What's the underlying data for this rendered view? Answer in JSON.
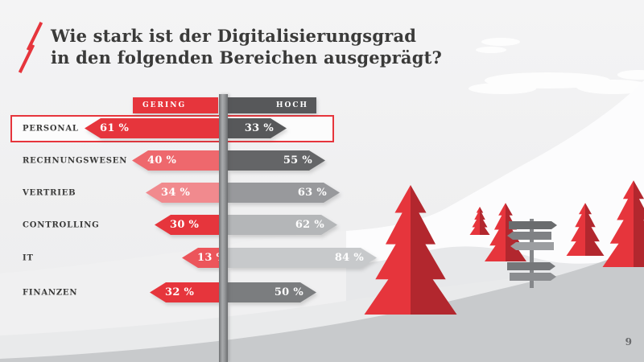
{
  "title": {
    "line1": "Wie stark ist der Digitalisierungsgrad",
    "line2": "in den folgenden Bereichen ausgeprägt?"
  },
  "legend": {
    "left": {
      "label": "GERING",
      "color": "#e6353c"
    },
    "right": {
      "label": "HOCH",
      "color": "#57585a"
    }
  },
  "rows": [
    {
      "label": "PERSONAL",
      "left_label": "61 %",
      "left_value": 61,
      "left_color": "#e6353c",
      "right_label": "33 %",
      "right_value": 33,
      "right_color": "#57585a",
      "highlighted": true
    },
    {
      "label": "RECHNUNGSWESEN",
      "left_label": "40 %",
      "left_value": 40,
      "left_color": "#ee686d",
      "right_label": "55 %",
      "right_value": 55,
      "right_color": "#646567",
      "highlighted": false
    },
    {
      "label": "VERTRIEB",
      "left_label": "34 %",
      "left_value": 34,
      "left_color": "#f18a8e",
      "right_label": "63 %",
      "right_value": 63,
      "right_color": "#98999c",
      "highlighted": false
    },
    {
      "label": "CONTROLLING",
      "left_label": "30 %",
      "left_value": 30,
      "left_color": "#e6353c",
      "right_label": "62 %",
      "right_value": 62,
      "right_color": "#b4b6b8",
      "highlighted": false
    },
    {
      "label": "IT",
      "left_label": "13 %",
      "left_value": 13,
      "left_color": "#ec555b",
      "right_label": "84 %",
      "right_value": 84,
      "right_color": "#c7c9cb",
      "highlighted": false
    },
    {
      "label": "FINANZEN",
      "left_label": "32 %",
      "left_value": 32,
      "left_color": "#e6353c",
      "right_label": "50 %",
      "right_value": 50,
      "right_color": "#7b7d7f",
      "highlighted": false
    }
  ],
  "footer": {
    "page_number": "9"
  },
  "palette": {
    "accent_red": "#e6353c",
    "dark_red": "#b2272e",
    "dark_gray": "#57585a",
    "road_gray": "#c8cacc"
  },
  "chart_data": {
    "type": "bar",
    "orientation": "horizontal-diverging",
    "title": "Wie stark ist der Digitalisierungsgrad in den folgenden Bereichen ausgeprägt?",
    "categories": [
      "Personal",
      "Rechnungswesen",
      "Vertrieb",
      "Controlling",
      "IT",
      "Finanzen"
    ],
    "series": [
      {
        "name": "Gering",
        "values": [
          61,
          40,
          34,
          30,
          13,
          32
        ]
      },
      {
        "name": "Hoch",
        "values": [
          33,
          55,
          63,
          62,
          84,
          50
        ]
      }
    ],
    "unit": "%",
    "legend_position": "top",
    "highlighted_category": "Personal",
    "annotation": "Values rendered as signpost arrows diverging from a central pole; Gering (low) points left in red, Hoch (high) points right in gray"
  }
}
